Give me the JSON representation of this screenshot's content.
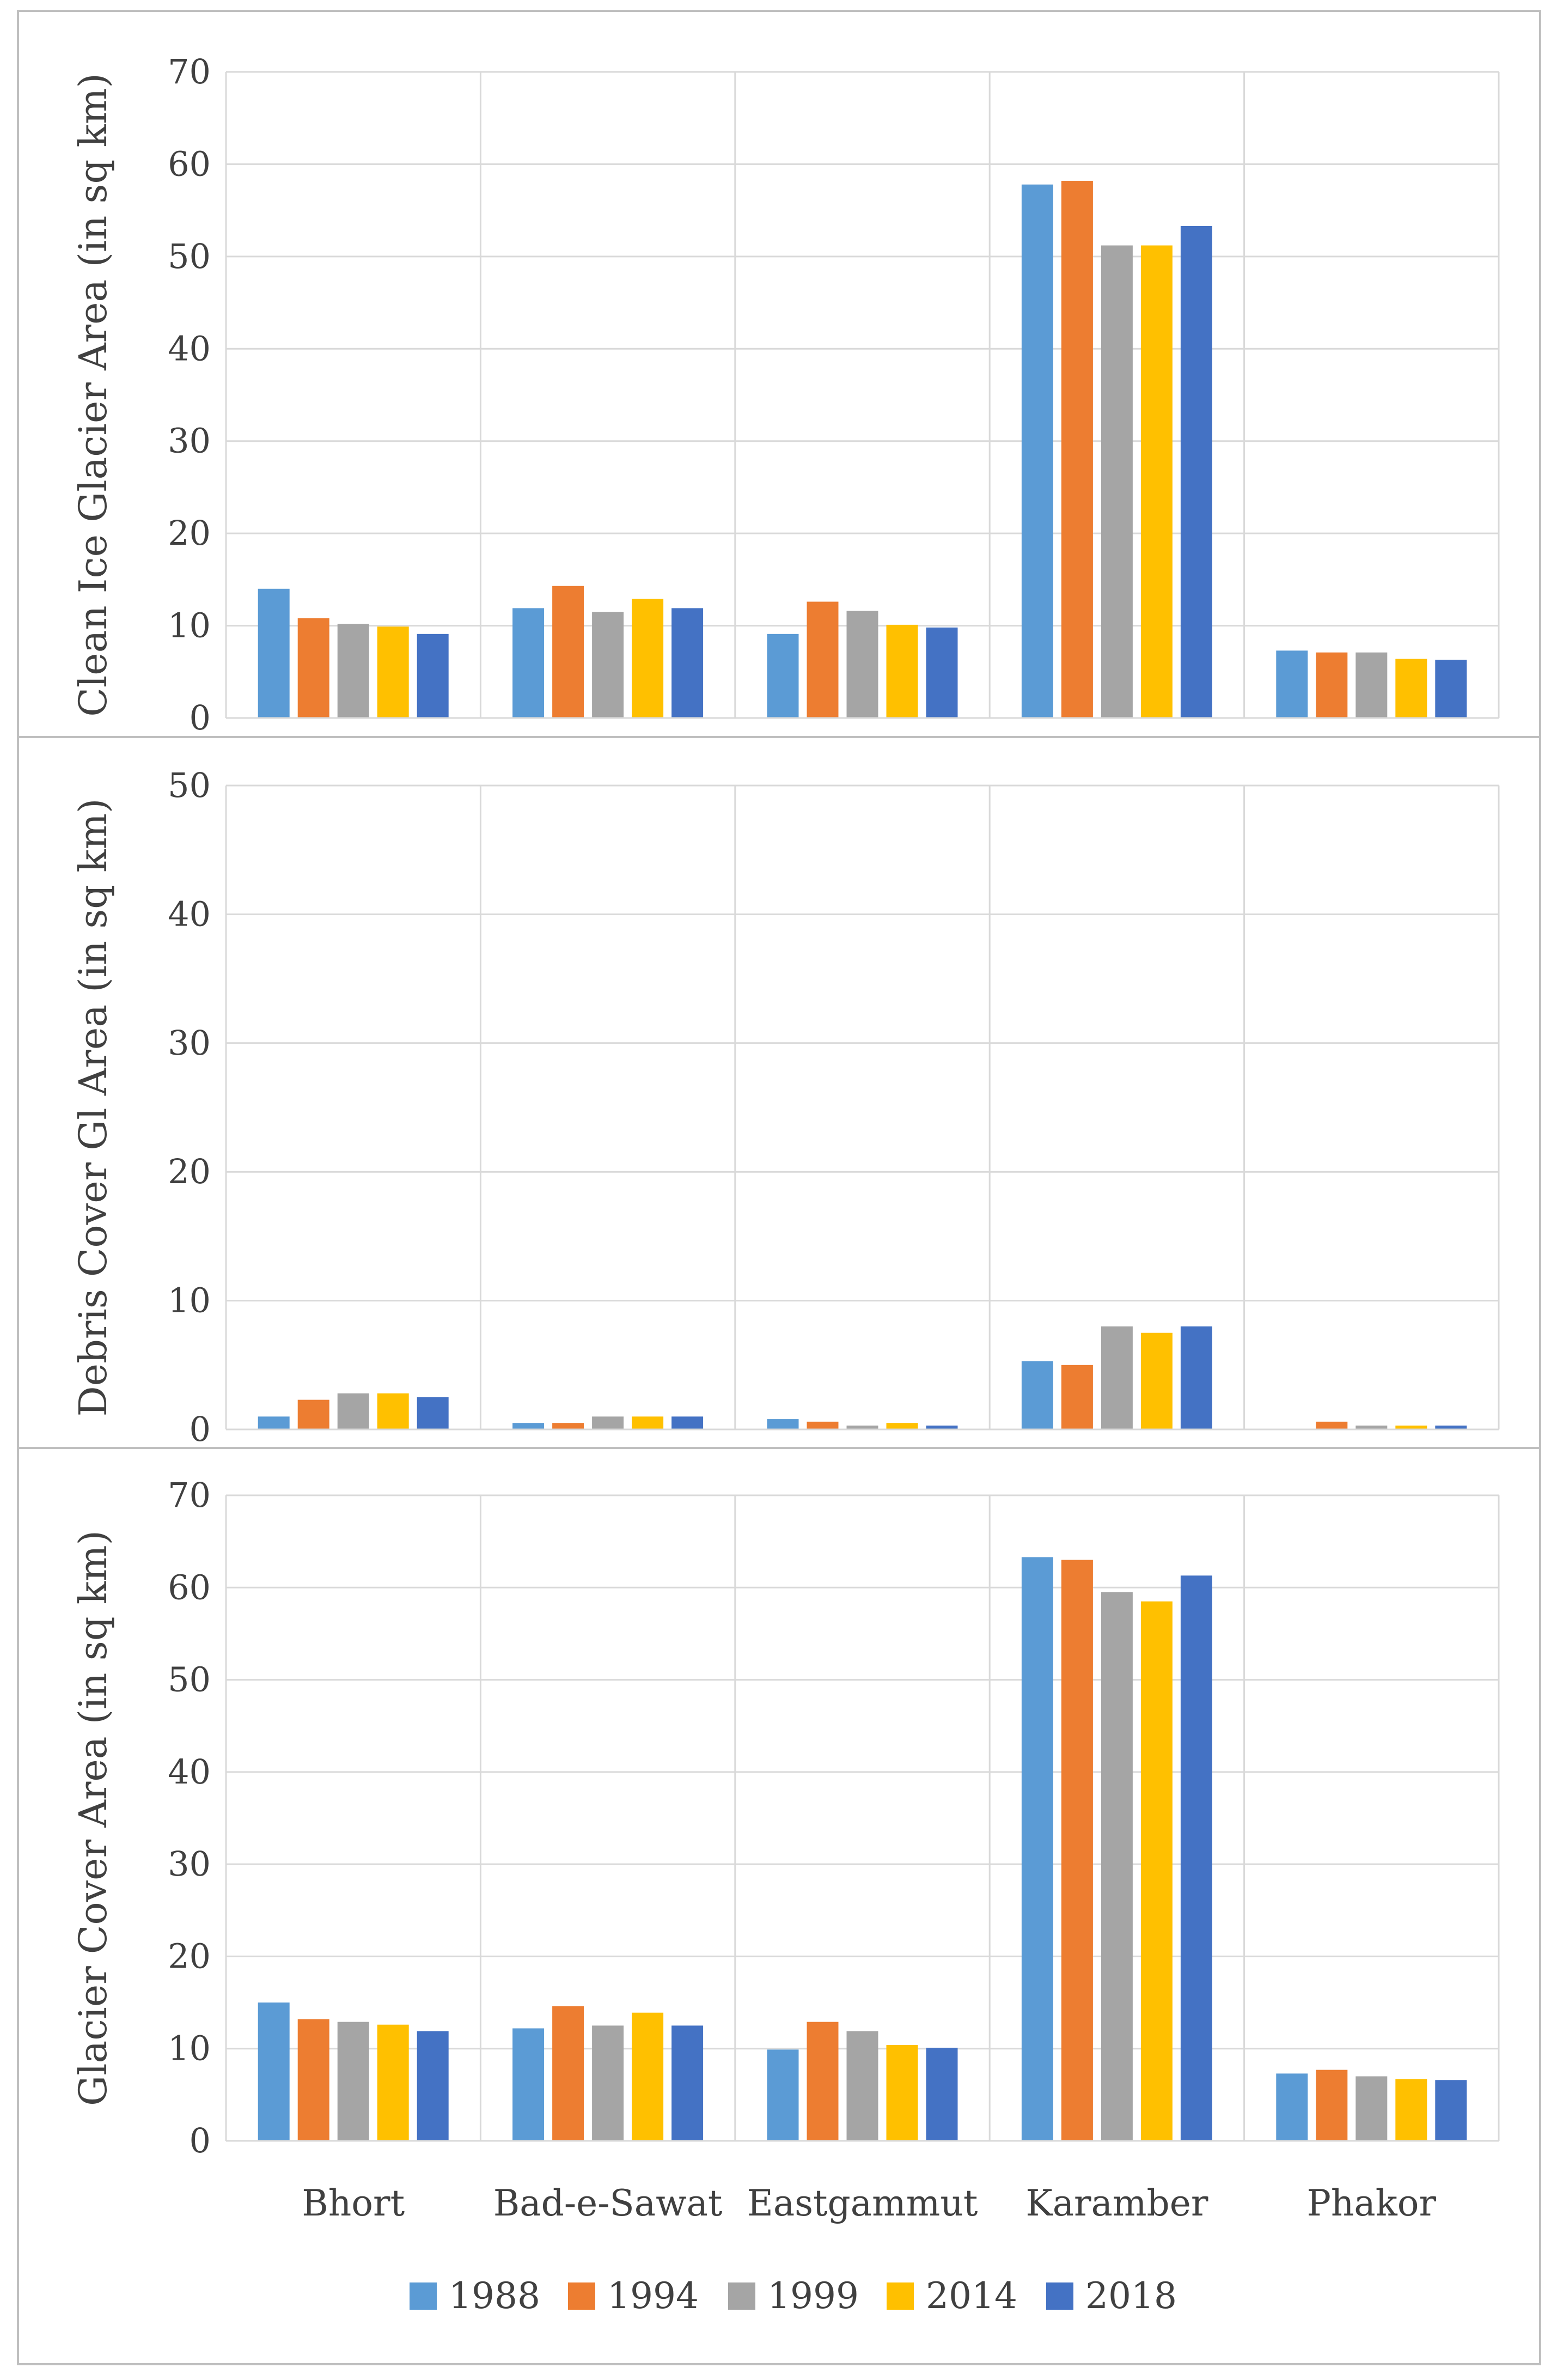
{
  "colors": {
    "1988": "#5B9BD5",
    "1994": "#ED7D31",
    "1999": "#A5A5A5",
    "2014": "#FFC000",
    "2018": "#4472C4",
    "grid": "#D9D9D9",
    "frame": "#BFBFBF"
  },
  "legend_placement": "bottom",
  "chart_data": [
    {
      "type": "bar",
      "xlabel": "",
      "ylabel": "Clean Ice  Glacier Area (in sq km)",
      "ylim": [
        0,
        70
      ],
      "yticks": [
        0,
        10,
        20,
        30,
        40,
        50,
        60,
        70
      ],
      "grid": true,
      "categories": [
        "Bhort",
        "Bad-e-Sawat",
        "Eastgammut",
        "Karamber",
        "Phakor"
      ],
      "series": [
        {
          "name": "1988",
          "values": [
            14.0,
            11.9,
            9.1,
            57.8,
            7.3
          ]
        },
        {
          "name": "1994",
          "values": [
            10.8,
            14.3,
            12.6,
            58.2,
            7.1
          ]
        },
        {
          "name": "1999",
          "values": [
            10.2,
            11.5,
            11.6,
            51.2,
            7.1
          ]
        },
        {
          "name": "2014",
          "values": [
            9.9,
            12.9,
            10.1,
            51.2,
            6.4
          ]
        },
        {
          "name": "2018",
          "values": [
            9.1,
            11.9,
            9.8,
            53.3,
            6.3
          ]
        }
      ]
    },
    {
      "type": "bar",
      "xlabel": "",
      "ylabel": "Debris Cover Gl Area (in sq km)",
      "ylim": [
        0,
        50
      ],
      "yticks": [
        0,
        10,
        20,
        30,
        40,
        50
      ],
      "grid": true,
      "categories": [
        "Bhort",
        "Bad-e-Sawat",
        "Eastgammut",
        "Karamber",
        "Phakor"
      ],
      "series": [
        {
          "name": "1988",
          "values": [
            1.0,
            0.5,
            0.8,
            5.3,
            0.0
          ]
        },
        {
          "name": "1994",
          "values": [
            2.3,
            0.5,
            0.6,
            5.0,
            0.6
          ]
        },
        {
          "name": "1999",
          "values": [
            2.8,
            1.0,
            0.3,
            8.0,
            0.3
          ]
        },
        {
          "name": "2014",
          "values": [
            2.8,
            1.0,
            0.5,
            7.5,
            0.3
          ]
        },
        {
          "name": "2018",
          "values": [
            2.5,
            1.0,
            0.3,
            8.0,
            0.3
          ]
        }
      ]
    },
    {
      "type": "bar",
      "xlabel": "",
      "ylabel": "Glacier Cover  Area (in sq km)",
      "ylim": [
        0,
        70
      ],
      "yticks": [
        0,
        10,
        20,
        30,
        40,
        50,
        60,
        70
      ],
      "grid": true,
      "categories": [
        "Bhort",
        "Bad-e-Sawat",
        "Eastgammut",
        "Karamber",
        "Phakor"
      ],
      "series": [
        {
          "name": "1988",
          "values": [
            15.0,
            12.2,
            9.9,
            63.3,
            7.3
          ]
        },
        {
          "name": "1994",
          "values": [
            13.2,
            14.6,
            12.9,
            63.0,
            7.7
          ]
        },
        {
          "name": "1999",
          "values": [
            12.9,
            12.5,
            11.9,
            59.5,
            7.0
          ]
        },
        {
          "name": "2014",
          "values": [
            12.6,
            13.9,
            10.4,
            58.5,
            6.7
          ]
        },
        {
          "name": "2018",
          "values": [
            11.9,
            12.5,
            10.1,
            61.3,
            6.6
          ]
        }
      ]
    }
  ]
}
